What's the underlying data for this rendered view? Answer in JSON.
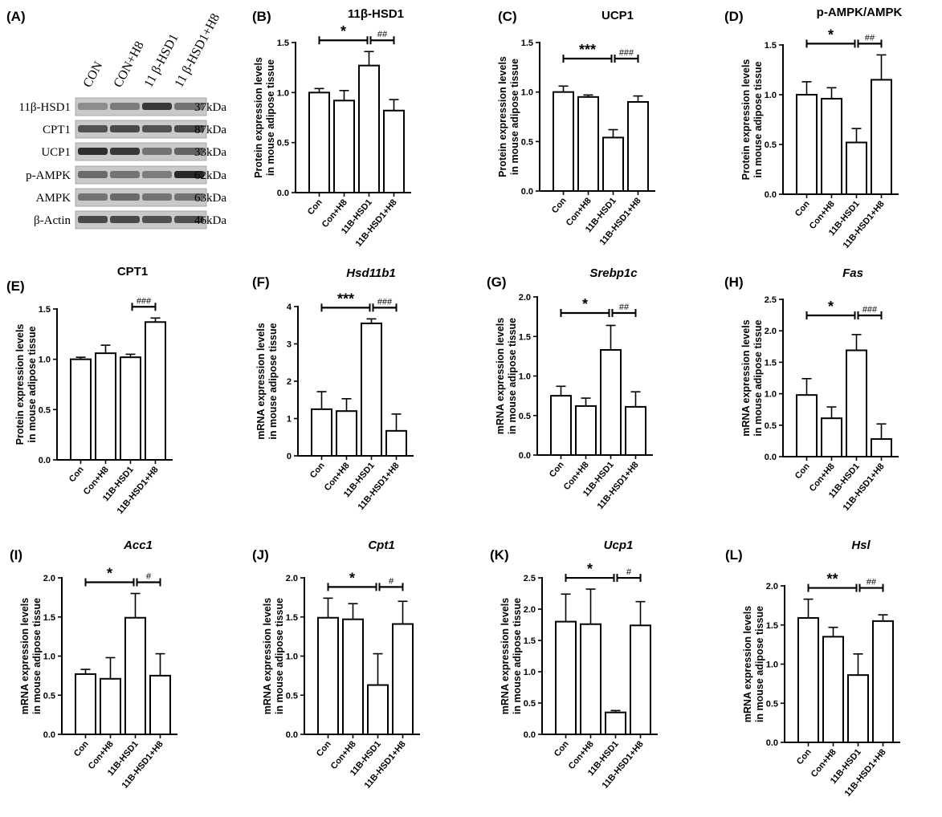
{
  "western_blot": {
    "label": "(A)",
    "lanes": [
      "CON",
      "CON+H8",
      "11 β-HSD1",
      "11 β-HSD1+H8"
    ],
    "rows": [
      {
        "protein": "11β-HSD1",
        "size": "37kDa",
        "intensity": [
          0.35,
          0.45,
          0.85,
          0.5
        ]
      },
      {
        "protein": "CPT1",
        "size": "87kDa",
        "intensity": [
          0.7,
          0.75,
          0.7,
          0.75
        ]
      },
      {
        "protein": "UCP1",
        "size": "33kDa",
        "intensity": [
          0.9,
          0.85,
          0.5,
          0.6
        ]
      },
      {
        "protein": "p-AMPK",
        "size": "62kDa",
        "intensity": [
          0.55,
          0.5,
          0.45,
          0.95
        ]
      },
      {
        "protein": "AMPK",
        "size": "63kDa",
        "intensity": [
          0.5,
          0.55,
          0.5,
          0.5
        ]
      },
      {
        "protein": "β-Actin",
        "size": "46kDa",
        "intensity": [
          0.75,
          0.75,
          0.7,
          0.7
        ]
      }
    ]
  },
  "chart_data": [
    {
      "id": "B",
      "label": "(B)",
      "type": "bar",
      "title": "11β-HSD1",
      "italic": false,
      "categories": [
        "Con",
        "Con+H8",
        "11B-HSD1",
        "11B-HSD1+H8"
      ],
      "values": [
        1.0,
        0.92,
        1.27,
        0.82
      ],
      "errors": [
        0.04,
        0.1,
        0.14,
        0.11
      ],
      "ylabel": [
        "Protein expression levels",
        "in mouse adipose tissue"
      ],
      "ylim": [
        0,
        1.5
      ],
      "ticks": [
        0.0,
        0.5,
        1.0,
        1.5
      ],
      "tick_labels": [
        "0.0",
        "0.5",
        "1.0",
        "1.5"
      ],
      "sig": [
        {
          "text": "*",
          "kind": "star",
          "from": 0,
          "to": 2
        },
        {
          "text": "##",
          "kind": "hash",
          "from": 2,
          "to": 3
        }
      ]
    },
    {
      "id": "C",
      "label": "(C)",
      "type": "bar",
      "title": "UCP1",
      "italic": false,
      "categories": [
        "Con",
        "Con+H8",
        "11B-HSD1",
        "11B-HSD1+H8"
      ],
      "values": [
        1.0,
        0.95,
        0.54,
        0.9
      ],
      "errors": [
        0.06,
        0.02,
        0.08,
        0.06
      ],
      "ylabel": [
        "Protein expression levels",
        "in mouse adipose tissue"
      ],
      "ylim": [
        0,
        1.5
      ],
      "ticks": [
        0.0,
        0.5,
        1.0,
        1.5
      ],
      "tick_labels": [
        "0.0",
        "0.5",
        "1.0",
        "1.5"
      ],
      "sig": [
        {
          "text": "***",
          "kind": "star",
          "from": 0,
          "to": 2
        },
        {
          "text": "###",
          "kind": "hash",
          "from": 2,
          "to": 3
        }
      ]
    },
    {
      "id": "D",
      "label": "(D)",
      "type": "bar",
      "title": "p-AMPK/AMPK",
      "italic": false,
      "categories": [
        "Con",
        "Con+H8",
        "11B-HSD1",
        "11B-HSD1+H8"
      ],
      "values": [
        1.0,
        0.96,
        0.52,
        1.15
      ],
      "errors": [
        0.13,
        0.11,
        0.14,
        0.25
      ],
      "ylabel": [
        "Protein expression levels",
        "in mouse adipose tissue"
      ],
      "ylim": [
        0,
        1.5
      ],
      "ticks": [
        0.0,
        0.5,
        1.0,
        1.5
      ],
      "tick_labels": [
        "0.0",
        "0.5",
        "1.0",
        "1.5"
      ],
      "sig": [
        {
          "text": "*",
          "kind": "star",
          "from": 0,
          "to": 2
        },
        {
          "text": "##",
          "kind": "hash",
          "from": 2,
          "to": 3
        }
      ]
    },
    {
      "id": "E",
      "label": "(E)",
      "type": "bar",
      "title": "CPT1",
      "italic": false,
      "categories": [
        "Con",
        "Con+H8",
        "11B-HSD1",
        "11B-HSD1+H8"
      ],
      "values": [
        1.0,
        1.06,
        1.02,
        1.37
      ],
      "errors": [
        0.02,
        0.08,
        0.03,
        0.04
      ],
      "ylabel": [
        "Protein expression levels",
        "in mouse adipose tissue"
      ],
      "ylim": [
        0,
        1.5
      ],
      "ticks": [
        0.0,
        0.5,
        1.0,
        1.5
      ],
      "tick_labels": [
        "0.0",
        "0.5",
        "1.0",
        "1.5"
      ],
      "sig": [
        {
          "text": "###",
          "kind": "hash",
          "from": 2,
          "to": 3
        }
      ]
    },
    {
      "id": "F",
      "label": "(F)",
      "type": "bar",
      "title": "Hsd11b1",
      "italic": true,
      "categories": [
        "Con",
        "Con+H8",
        "11B-HSD1",
        "11B-HSD1+H8"
      ],
      "values": [
        1.25,
        1.2,
        3.55,
        0.67
      ],
      "errors": [
        0.47,
        0.33,
        0.12,
        0.45
      ],
      "ylabel": [
        "mRNA expression levels",
        "in mouse adipose tissue"
      ],
      "ylim": [
        0,
        4
      ],
      "ticks": [
        0,
        1,
        2,
        3,
        4
      ],
      "tick_labels": [
        "0",
        "1",
        "2",
        "3",
        "4"
      ],
      "sig": [
        {
          "text": "***",
          "kind": "star",
          "from": 0,
          "to": 2
        },
        {
          "text": "###",
          "kind": "hash",
          "from": 2,
          "to": 3
        }
      ]
    },
    {
      "id": "G",
      "label": "(G)",
      "type": "bar",
      "title": "Srebp1c",
      "italic": true,
      "categories": [
        "Con",
        "Con+H8",
        "11B-HSD1",
        "11B-HSD1+H8"
      ],
      "values": [
        0.75,
        0.62,
        1.33,
        0.61
      ],
      "errors": [
        0.12,
        0.1,
        0.31,
        0.19
      ],
      "ylabel": [
        "mRNA expression levels",
        "in mouse adipose tissue"
      ],
      "ylim": [
        0,
        2.0
      ],
      "ticks": [
        0.0,
        0.5,
        1.0,
        1.5,
        2.0
      ],
      "tick_labels": [
        "0.0",
        "0.5",
        "1.0",
        "1.5",
        "2.0"
      ],
      "sig": [
        {
          "text": "*",
          "kind": "star",
          "from": 0,
          "to": 2
        },
        {
          "text": "##",
          "kind": "hash",
          "from": 2,
          "to": 3
        }
      ]
    },
    {
      "id": "H",
      "label": "(H)",
      "type": "bar",
      "title": "Fas",
      "italic": true,
      "categories": [
        "Con",
        "Con+H8",
        "11B-HSD1",
        "11B-HSD1+H8"
      ],
      "values": [
        0.98,
        0.61,
        1.69,
        0.28
      ],
      "errors": [
        0.26,
        0.18,
        0.25,
        0.24
      ],
      "ylabel": [
        "mRNA expression levels",
        "in mouse adipose tissue"
      ],
      "ylim": [
        0,
        2.5
      ],
      "ticks": [
        0.0,
        0.5,
        1.0,
        1.5,
        2.0,
        2.5
      ],
      "tick_labels": [
        "0.0",
        "0.5",
        "1.0",
        "1.5",
        "2.0",
        "2.5"
      ],
      "sig": [
        {
          "text": "*",
          "kind": "star",
          "from": 0,
          "to": 2
        },
        {
          "text": "###",
          "kind": "hash",
          "from": 2,
          "to": 3
        }
      ]
    },
    {
      "id": "I",
      "label": "(I)",
      "type": "bar",
      "title": "Acc1",
      "italic": true,
      "categories": [
        "Con",
        "Con+H8",
        "11B-HSD1",
        "11B-HSD1+H8"
      ],
      "values": [
        0.77,
        0.71,
        1.49,
        0.75
      ],
      "errors": [
        0.06,
        0.27,
        0.31,
        0.28
      ],
      "ylabel": [
        "mRNA expression levels",
        "in mouse adipose tissue"
      ],
      "ylim": [
        0,
        2.0
      ],
      "ticks": [
        0.0,
        0.5,
        1.0,
        1.5,
        2.0
      ],
      "tick_labels": [
        "0.0",
        "0.5",
        "1.0",
        "1.5",
        "2.0"
      ],
      "sig": [
        {
          "text": "*",
          "kind": "star",
          "from": 0,
          "to": 2
        },
        {
          "text": "#",
          "kind": "hash",
          "from": 2,
          "to": 3
        }
      ]
    },
    {
      "id": "J",
      "label": "(J)",
      "type": "bar",
      "title": "Cpt1",
      "italic": true,
      "categories": [
        "Con",
        "Con+H8",
        "11B-HSD1",
        "11B-HSD1+H8"
      ],
      "values": [
        1.49,
        1.47,
        0.63,
        1.41
      ],
      "errors": [
        0.25,
        0.2,
        0.4,
        0.29
      ],
      "ylabel": [
        "mRNA expression levels",
        "in mouse adipose tissue"
      ],
      "ylim": [
        0,
        2.0
      ],
      "ticks": [
        0.0,
        0.5,
        1.0,
        1.5,
        2.0
      ],
      "tick_labels": [
        "0.0",
        "0.5",
        "1.0",
        "1.5",
        "2.0"
      ],
      "sig": [
        {
          "text": "*",
          "kind": "star",
          "from": 0,
          "to": 2
        },
        {
          "text": "#",
          "kind": "hash",
          "from": 2,
          "to": 3
        }
      ]
    },
    {
      "id": "K",
      "label": "(K)",
      "type": "bar",
      "title": "Ucp1",
      "italic": true,
      "categories": [
        "Con",
        "Con+H8",
        "11B-HSD1",
        "11B-HSD1+H8"
      ],
      "values": [
        1.8,
        1.76,
        0.35,
        1.74
      ],
      "errors": [
        0.44,
        0.56,
        0.03,
        0.38
      ],
      "ylabel": [
        "mRNA expression levels",
        "in mouse adipose tissue"
      ],
      "ylim": [
        0,
        2.5
      ],
      "ticks": [
        0.0,
        0.5,
        1.0,
        1.5,
        2.0,
        2.5
      ],
      "tick_labels": [
        "0.0",
        "0.5",
        "1.0",
        "1.5",
        "2.0",
        "2.5"
      ],
      "sig": [
        {
          "text": "*",
          "kind": "star",
          "from": 0,
          "to": 2
        },
        {
          "text": "#",
          "kind": "hash",
          "from": 2,
          "to": 3
        }
      ]
    },
    {
      "id": "L",
      "label": "(L)",
      "type": "bar",
      "title": "Hsl",
      "italic": true,
      "categories": [
        "Con",
        "Con+H8",
        "11B-HSD1",
        "11B-HSD1+H8"
      ],
      "values": [
        1.59,
        1.35,
        0.86,
        1.55
      ],
      "errors": [
        0.24,
        0.12,
        0.27,
        0.08
      ],
      "ylabel": [
        "mRNA expression levels",
        "in mouse adipose tissue"
      ],
      "ylim": [
        0,
        2.0
      ],
      "ticks": [
        0.0,
        0.5,
        1.0,
        1.5,
        2.0
      ],
      "tick_labels": [
        "0.0",
        "0.5",
        "1.0",
        "1.5",
        "2.0"
      ],
      "sig": [
        {
          "text": "**",
          "kind": "star",
          "from": 0,
          "to": 2
        },
        {
          "text": "##",
          "kind": "hash",
          "from": 2,
          "to": 3
        }
      ]
    }
  ]
}
